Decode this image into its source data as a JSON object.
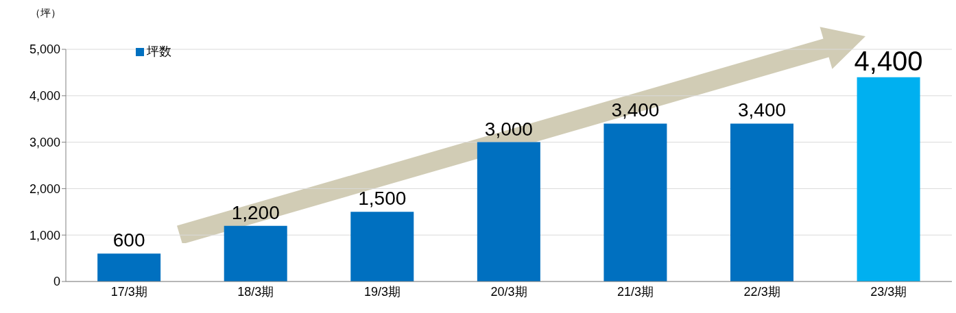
{
  "chart_data": {
    "type": "bar",
    "ylabel": "（坪）",
    "categories": [
      "17/3期",
      "18/3期",
      "19/3期",
      "20/3期",
      "21/3期",
      "22/3期",
      "23/3期"
    ],
    "series": [
      {
        "name": "坪数",
        "color": "#0070c0",
        "colors": [
          "#0070c0",
          "#0070c0",
          "#0070c0",
          "#0070c0",
          "#0070c0",
          "#0070c0",
          "#00b0f0"
        ],
        "values": [
          600,
          1200,
          1500,
          3000,
          3400,
          3400,
          4400
        ],
        "value_labels": [
          "600",
          "1,200",
          "1,500",
          "3,000",
          "3,400",
          "3,400",
          "4,400"
        ]
      }
    ],
    "ylim": [
      0,
      5000
    ],
    "yticks": [
      {
        "value": 0,
        "label": "0"
      },
      {
        "value": 1000,
        "label": "1,000"
      },
      {
        "value": 2000,
        "label": "2,000"
      },
      {
        "value": 3000,
        "label": "3,000"
      },
      {
        "value": 4000,
        "label": "4,000"
      },
      {
        "value": 5000,
        "label": "5,000"
      }
    ],
    "grid": "y",
    "legend": "top left"
  }
}
